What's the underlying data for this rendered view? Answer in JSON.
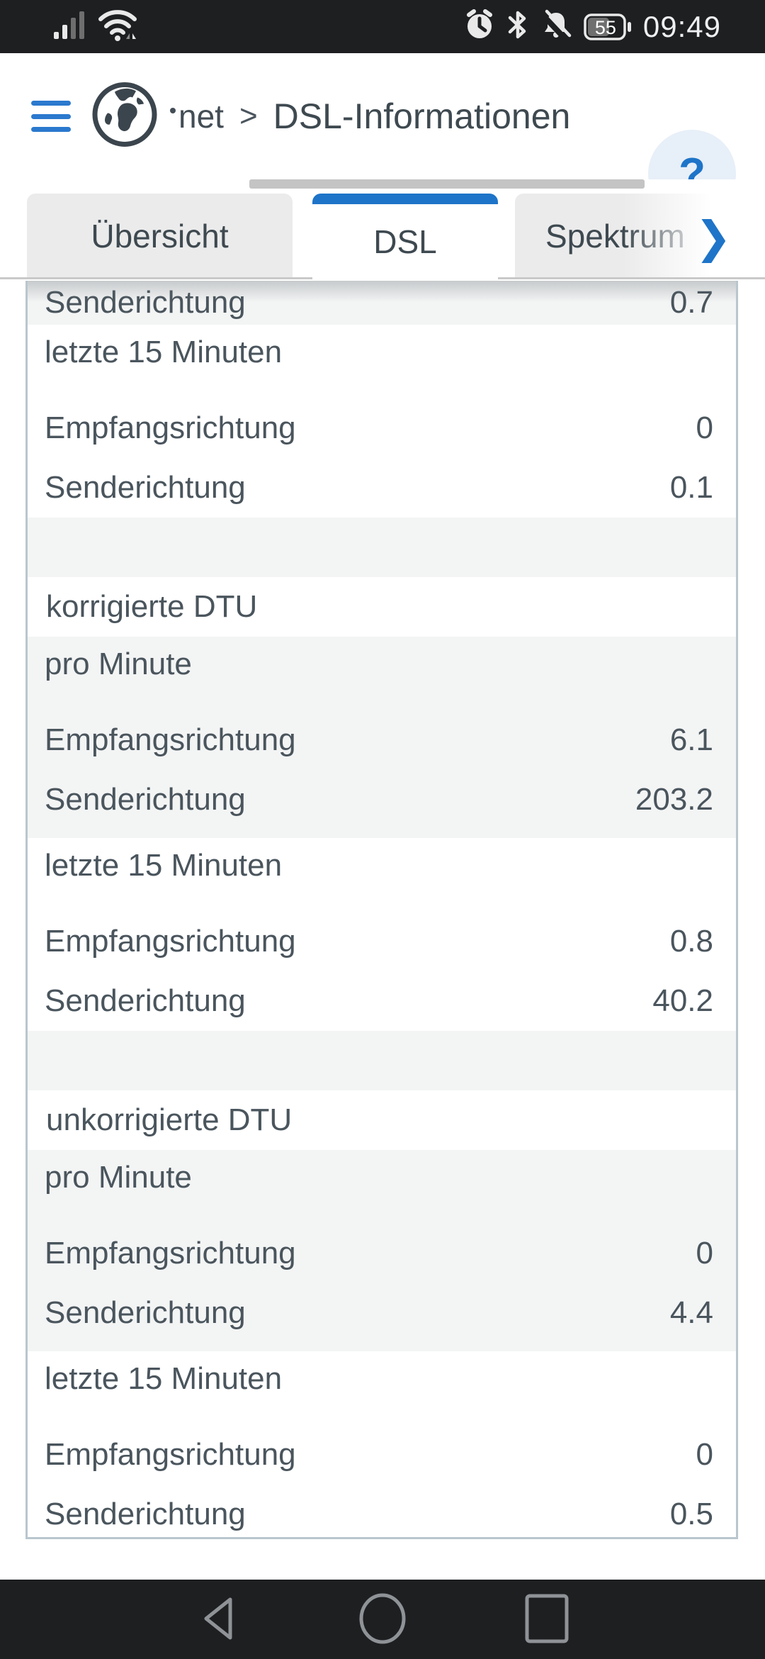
{
  "status_bar": {
    "time": "09:49",
    "battery_level": "55",
    "icons": [
      "signal",
      "wifi",
      "alarm",
      "bluetooth",
      "notifications-muted",
      "battery"
    ]
  },
  "header": {
    "breadcrumb_parent_fragment": "net",
    "breadcrumb_separator": ">",
    "title": "DSL-Informationen",
    "help_glyph": "?"
  },
  "tab_bar": {
    "tabs": [
      {
        "id": "uebersicht",
        "label": "Übersicht",
        "active": false
      },
      {
        "id": "dsl",
        "label": "DSL",
        "active": true
      },
      {
        "id": "spektrum",
        "label": "Spektrum",
        "active": false
      }
    ],
    "overflow_chevron": "❯"
  },
  "table": {
    "groups": [
      {
        "type": "clipped_row",
        "bg": "gray",
        "label": "Senderichtung",
        "value": "0.7"
      },
      {
        "type": "group",
        "bg": "white",
        "subheading": "letzte 15 Minuten",
        "rows": [
          {
            "label": "Empfangsrichtung",
            "value": "0"
          },
          {
            "label": "Senderichtung",
            "value": "0.1"
          }
        ]
      },
      {
        "type": "spacer",
        "bg": "gray"
      },
      {
        "type": "heading",
        "bg": "white",
        "text": "korrigierte DTU"
      },
      {
        "type": "group",
        "bg": "gray",
        "subheading": "pro Minute",
        "rows": [
          {
            "label": "Empfangsrichtung",
            "value": "6.1"
          },
          {
            "label": "Senderichtung",
            "value": "203.2"
          }
        ]
      },
      {
        "type": "group",
        "bg": "white",
        "subheading": "letzte 15 Minuten",
        "rows": [
          {
            "label": "Empfangsrichtung",
            "value": "0.8"
          },
          {
            "label": "Senderichtung",
            "value": "40.2"
          }
        ]
      },
      {
        "type": "spacer",
        "bg": "gray"
      },
      {
        "type": "heading",
        "bg": "white",
        "text": "unkorrigierte DTU"
      },
      {
        "type": "group",
        "bg": "gray",
        "subheading": "pro Minute",
        "rows": [
          {
            "label": "Empfangsrichtung",
            "value": "0"
          },
          {
            "label": "Senderichtung",
            "value": "4.4"
          }
        ]
      },
      {
        "type": "group",
        "bg": "white",
        "subheading": "letzte 15 Minuten",
        "rows": [
          {
            "label": "Empfangsrichtung",
            "value": "0"
          },
          {
            "label": "Senderichtung",
            "value": "0.5"
          }
        ]
      }
    ]
  },
  "nav_bar": {
    "icons": [
      "back",
      "home",
      "recents"
    ]
  },
  "colors": {
    "accent_blue": "#1e74c8",
    "hamburger_blue": "#2b79cf",
    "help_circle_bg": "#e7eff8",
    "row_stripe": "#f3f4f4",
    "table_border": "#b9c6ce",
    "header_text": "#434d55",
    "table_text": "#4a555d",
    "bar_bg": "#1d1f21",
    "nav_icon": "#8f9296",
    "tab_inactive_bg": "#ebebeb",
    "tab_underline": "#c9c9c9",
    "scroll_indicator": "#c4c4c4"
  }
}
